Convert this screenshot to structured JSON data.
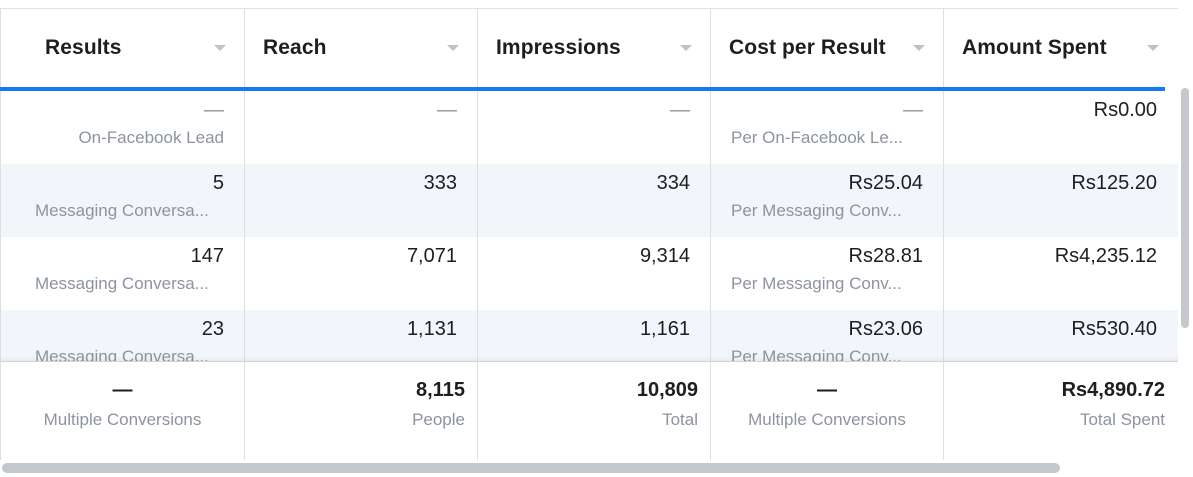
{
  "columns": [
    {
      "label": "Results"
    },
    {
      "label": "Reach"
    },
    {
      "label": "Impressions"
    },
    {
      "label": "Cost per Result"
    },
    {
      "label": "Amount Spent"
    }
  ],
  "rows": [
    {
      "results": {
        "value": "—",
        "sub": "On-Facebook Lead"
      },
      "reach": {
        "value": "—"
      },
      "impressions": {
        "value": "—"
      },
      "cost": {
        "value": "—",
        "sub": "Per On-Facebook Le..."
      },
      "spent": {
        "value": "Rs0.00"
      }
    },
    {
      "results": {
        "value": "5",
        "sub": "Messaging Conversa..."
      },
      "reach": {
        "value": "333"
      },
      "impressions": {
        "value": "334"
      },
      "cost": {
        "value": "Rs25.04",
        "sub": "Per Messaging Conv..."
      },
      "spent": {
        "value": "Rs125.20"
      }
    },
    {
      "results": {
        "value": "147",
        "sub": "Messaging Conversa..."
      },
      "reach": {
        "value": "7,071"
      },
      "impressions": {
        "value": "9,314"
      },
      "cost": {
        "value": "Rs28.81",
        "sub": "Per Messaging Conv..."
      },
      "spent": {
        "value": "Rs4,235.12"
      }
    },
    {
      "results": {
        "value": "23",
        "sub": "Messaging Conversa..."
      },
      "reach": {
        "value": "1,131"
      },
      "impressions": {
        "value": "1,161"
      },
      "cost": {
        "value": "Rs23.06",
        "sub": "Per Messaging Conv..."
      },
      "spent": {
        "value": "Rs530.40"
      }
    }
  ],
  "summary": {
    "results": {
      "value": "—",
      "sub": "Multiple Conversions"
    },
    "reach": {
      "value": "8,115",
      "sub": "People"
    },
    "impressions": {
      "value": "10,809",
      "sub": "Total"
    },
    "cost": {
      "value": "—",
      "sub": "Multiple Conversions"
    },
    "spent": {
      "value": "Rs4,890.72",
      "sub": "Total Spent"
    }
  },
  "colors": {
    "accent": "#1877f2",
    "row_alt": "#f2f6fa",
    "muted_text": "#8d949e",
    "border": "#dddfe2"
  }
}
